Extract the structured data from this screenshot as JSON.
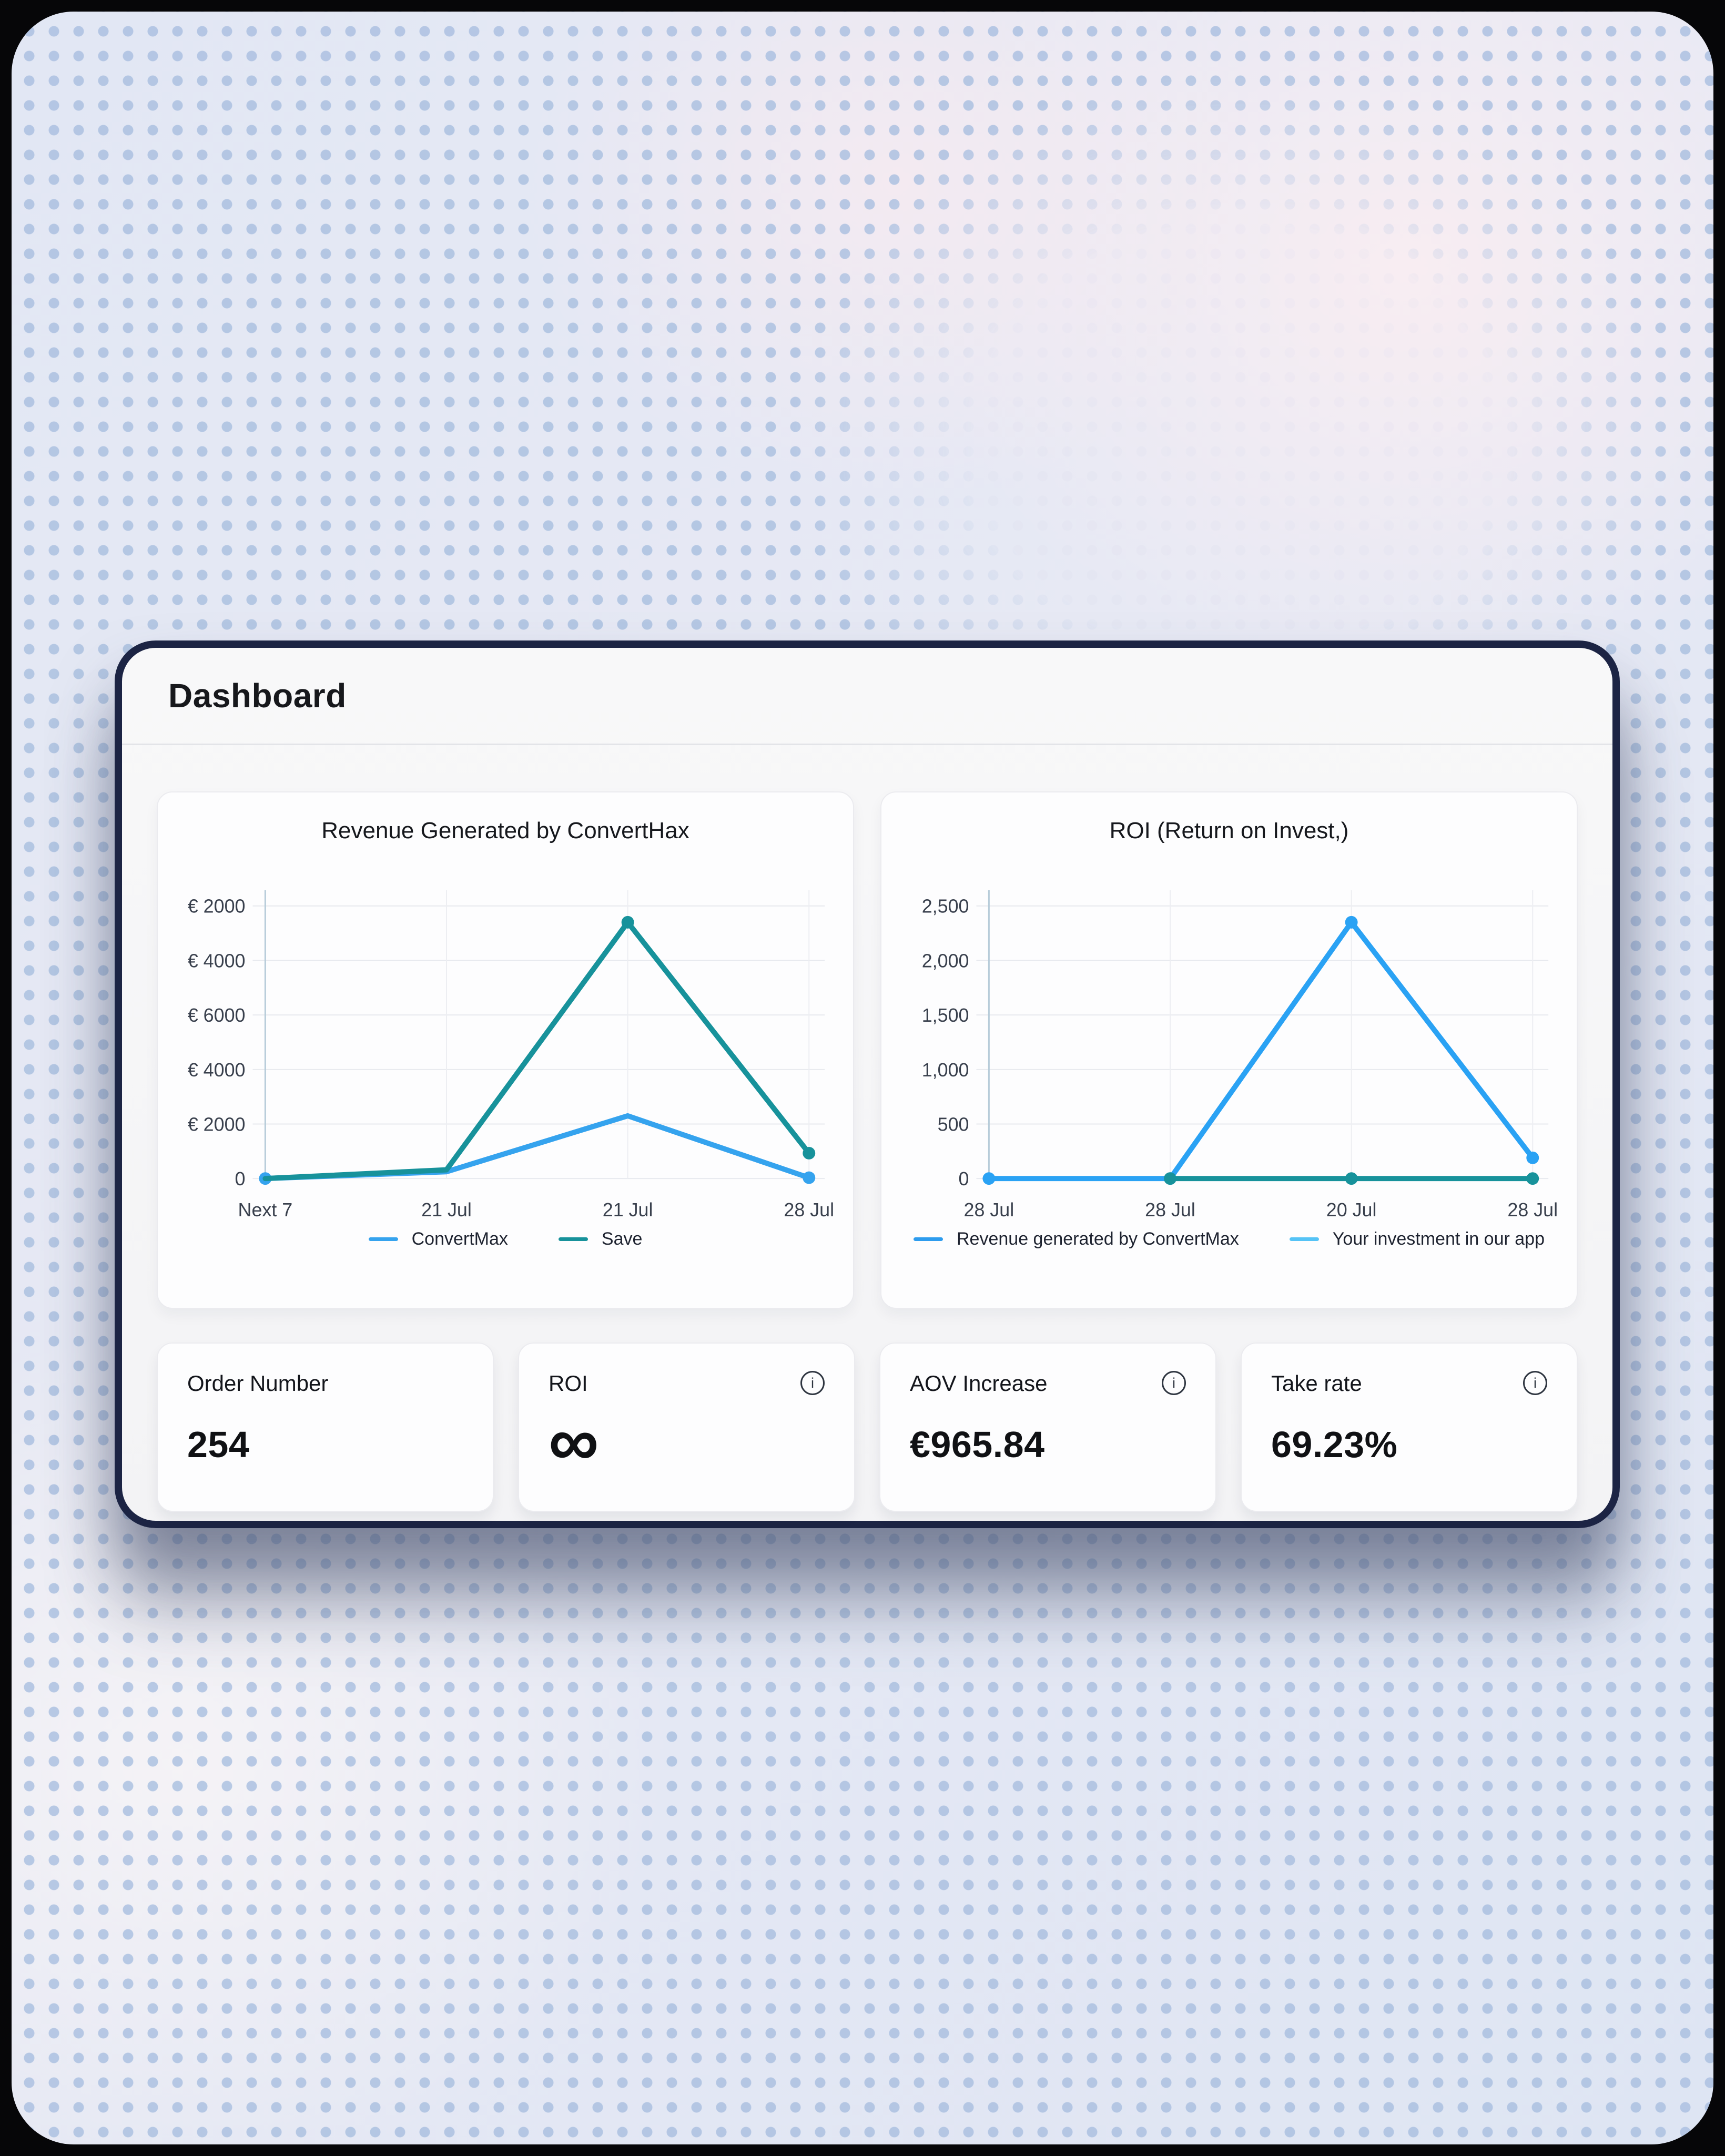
{
  "page": {
    "title": "Dashboard"
  },
  "chart_data": [
    {
      "type": "line",
      "title": "Revenue Generated by ConvertHax",
      "x_ticks": [
        "Next 7",
        "21 Jul",
        "21 Jul",
        "28 Jul"
      ],
      "y_ticks": [
        "€ 2000",
        "€ 4000",
        "€ 6000",
        "€ 4000",
        "€ 2000",
        "0"
      ],
      "y_max": 10000,
      "grid": true,
      "legend_position": "bottom",
      "series": [
        {
          "name": "ConvertMax",
          "color": "#35a3ee",
          "values": [
            0,
            250,
            2300,
            30
          ],
          "dots": [
            0,
            3
          ]
        },
        {
          "name": "Save",
          "color": "#17929b",
          "values": [
            0,
            320,
            9400,
            930
          ],
          "dots": [
            2,
            3
          ]
        }
      ],
      "legend": [
        {
          "label": "ConvertMax",
          "color": "#35a3ee"
        },
        {
          "label": "Save",
          "color": "#17929b"
        }
      ]
    },
    {
      "type": "line",
      "title": "ROI (Return on Invest,)",
      "x_ticks": [
        "28 Jul",
        "28 Jul",
        "20 Jul",
        "28 Jul"
      ],
      "y_ticks": [
        "2,500",
        "2,000",
        "1,500",
        "1,000",
        "500",
        "0"
      ],
      "y_max": 2500,
      "grid": true,
      "legend_position": "bottom",
      "series": [
        {
          "name": "Revenue generated by ConvertMax",
          "color": "#2aa2f4",
          "values": [
            0,
            0,
            2350,
            190
          ],
          "dots": [
            0,
            1,
            2,
            3
          ]
        },
        {
          "name": "Your investment in our app",
          "color": "#17929b",
          "values": [
            null,
            0,
            0,
            0
          ],
          "dots": [
            1,
            2,
            3
          ]
        }
      ],
      "legend": [
        {
          "label": "Revenue generated by ConvertMax",
          "color": "#2d9cee"
        },
        {
          "label": "Your investment in our app",
          "color": "#55c3f6"
        }
      ]
    }
  ],
  "stats": [
    {
      "label": "Order Number",
      "value": "254",
      "info": false
    },
    {
      "label": "ROI",
      "value": "∞",
      "info": true
    },
    {
      "label": "AOV Increase",
      "value": "€965.84",
      "info": true
    },
    {
      "label": "Take rate",
      "value": "69.23%",
      "info": true
    }
  ],
  "colors": {
    "card_border": "#1c2444",
    "line_blue": "#2aa2f4",
    "line_teal": "#17929b",
    "legend_light_blue": "#55c3f6",
    "dot_pattern": "#a9bfe0"
  }
}
